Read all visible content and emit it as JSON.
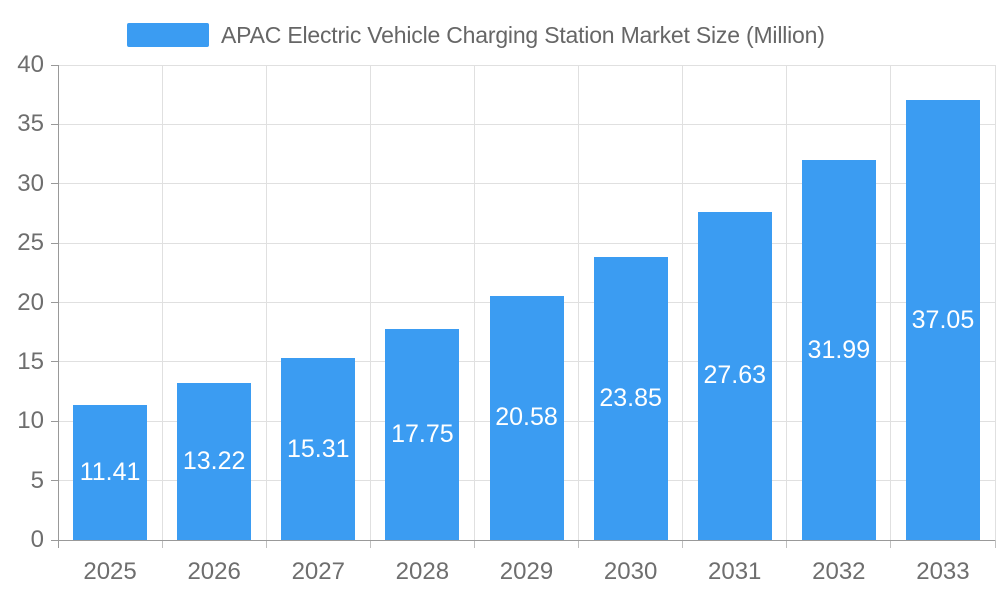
{
  "legend": {
    "label": "APAC Electric Vehicle Charging Station Market Size (Million)"
  },
  "chart_data": {
    "type": "bar",
    "title": "APAC Electric Vehicle Charging Station Market Size (Million)",
    "series_name": "APAC Electric Vehicle Charging Station Market Size (Million)",
    "categories": [
      "2025",
      "2026",
      "2027",
      "2028",
      "2029",
      "2030",
      "2031",
      "2032",
      "2033"
    ],
    "values": [
      11.41,
      13.22,
      15.31,
      17.75,
      20.58,
      23.85,
      27.63,
      31.99,
      37.05
    ],
    "xlabel": "",
    "ylabel": "",
    "ylim": [
      0,
      40
    ],
    "ytick_step": 5,
    "ytick_labels": [
      "0",
      "5",
      "10",
      "15",
      "20",
      "25",
      "30",
      "35",
      "40"
    ],
    "grid": true,
    "legend_position": "top",
    "value_label_position": "inside-center",
    "colors": {
      "bar": "#3b9cf2",
      "value_label": "#ffffff",
      "gridline": "#e0e0e0",
      "axis_line": "#999999",
      "tick": "#c0c0c0",
      "axis_label": "#6e6e6e",
      "legend_text": "#666666",
      "background": "#ffffff"
    }
  }
}
